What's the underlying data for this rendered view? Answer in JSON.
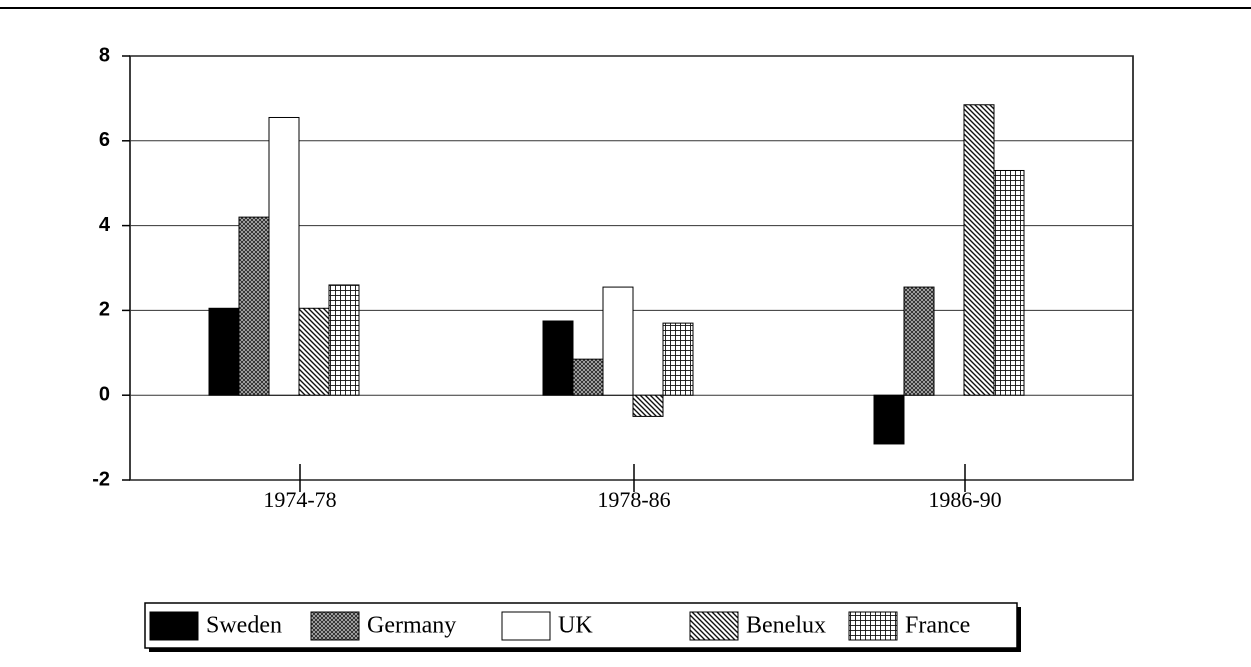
{
  "chart_data": {
    "type": "bar",
    "categories": [
      "1974-78",
      "1978-86",
      "1986-90"
    ],
    "series": [
      {
        "name": "Sweden",
        "color": "#000000",
        "pattern": "solid",
        "values": [
          2.05,
          1.75,
          -1.15
        ]
      },
      {
        "name": "Germany",
        "color": "#000000",
        "pattern": "crosshatch",
        "values": [
          4.2,
          0.85,
          2.55
        ]
      },
      {
        "name": "UK",
        "color": "#000000",
        "pattern": "none",
        "values": [
          6.55,
          2.55,
          0
        ]
      },
      {
        "name": "Benelux",
        "color": "#000000",
        "pattern": "hatch",
        "values": [
          2.05,
          -0.5,
          6.85
        ]
      },
      {
        "name": "France",
        "color": "#000000",
        "pattern": "grid",
        "values": [
          2.6,
          1.7,
          5.3
        ]
      }
    ],
    "ylim": [
      -2,
      8
    ],
    "yticks": [
      -2,
      0,
      2,
      4,
      6,
      8
    ],
    "grid": true,
    "legend": "bottom"
  }
}
